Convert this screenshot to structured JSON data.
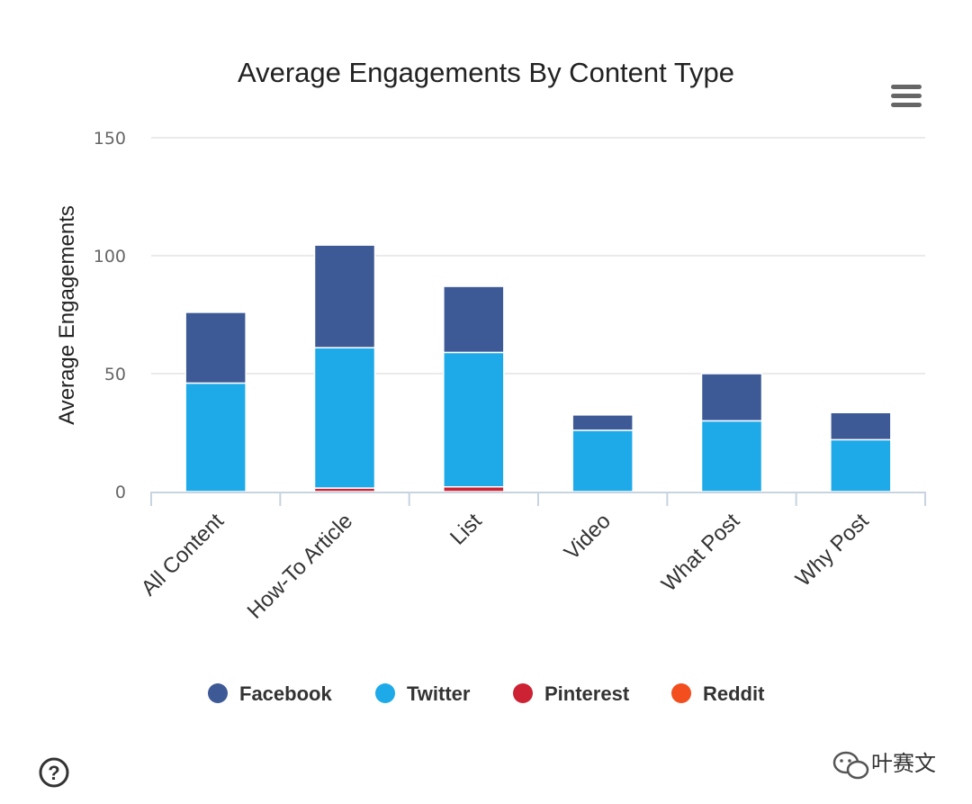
{
  "chart_data": {
    "type": "bar",
    "stacked": true,
    "title": "Average Engagements By Content Type",
    "xlabel": "",
    "ylabel": "Average Engagements",
    "ylim": [
      0,
      150
    ],
    "yticks": [
      "0",
      "50",
      "100",
      "150"
    ],
    "grid": true,
    "categories": [
      "All Content",
      "How-To Article",
      "List",
      "Video",
      "What Post",
      "Why Post"
    ],
    "series": [
      {
        "name": "Reddit",
        "color": "#f24e1e",
        "values": [
          0,
          0,
          0,
          0,
          0,
          0
        ]
      },
      {
        "name": "Pinterest",
        "color": "#cc2233",
        "values": [
          0,
          1.5,
          2,
          0,
          0,
          0
        ]
      },
      {
        "name": "Twitter",
        "color": "#1eaae9",
        "values": [
          46,
          59.5,
          57,
          26,
          30,
          22
        ]
      },
      {
        "name": "Facebook",
        "color": "#3d5a96",
        "values": [
          30,
          43.5,
          28,
          6.5,
          20,
          11.5
        ]
      }
    ],
    "legend": {
      "position": "bottom-center",
      "items": [
        {
          "label": "Facebook",
          "color": "#3d5a96"
        },
        {
          "label": "Twitter",
          "color": "#1eaae9"
        },
        {
          "label": "Pinterest",
          "color": "#cc2233"
        },
        {
          "label": "Reddit",
          "color": "#f24e1e"
        }
      ]
    }
  },
  "menu_icon": "hamburger-menu-icon",
  "help_icon": "question-circle-icon",
  "watermark": {
    "icon": "wechat-icon",
    "text": "叶赛文"
  }
}
